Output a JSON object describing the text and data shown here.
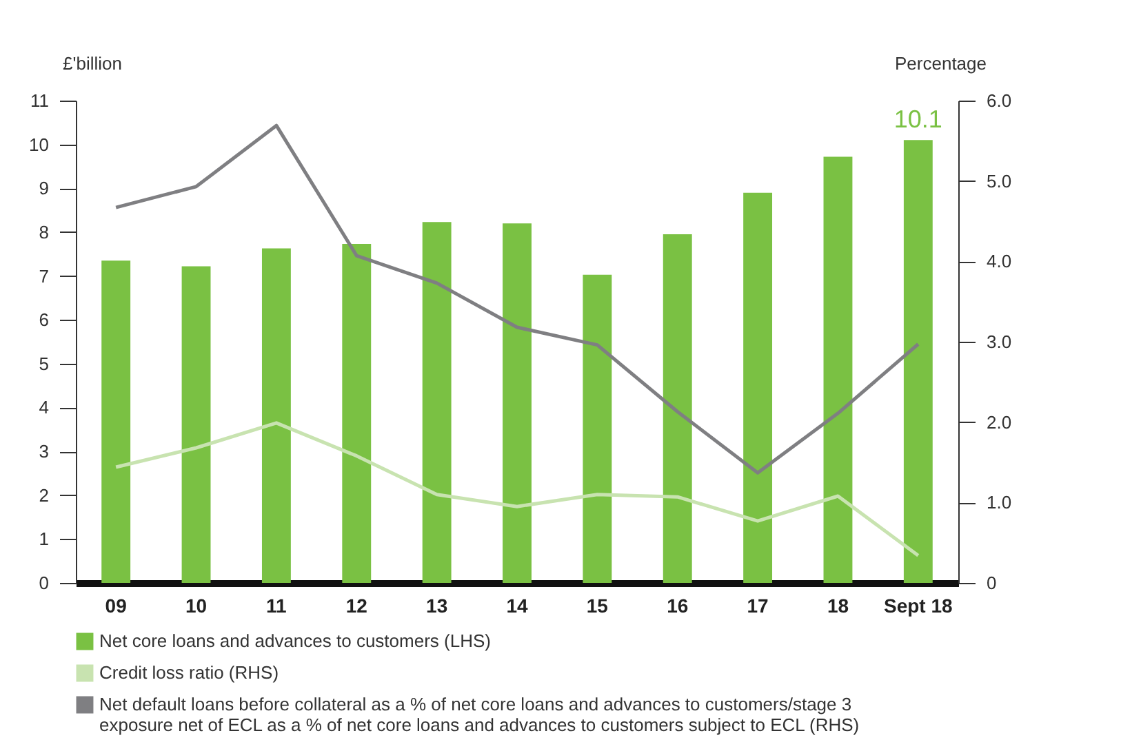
{
  "chart_data": {
    "type": "bar",
    "ylabel": "£'billion",
    "y2label": "Percentage",
    "categories": [
      "09",
      "10",
      "11",
      "12",
      "13",
      "14",
      "15",
      "16",
      "17",
      "18",
      "Sept 18"
    ],
    "series": [
      {
        "name": "Net core loans and advances to customers (LHS)",
        "color": "#7ac143",
        "values": [
          7.35,
          7.22,
          7.63,
          7.73,
          8.23,
          8.2,
          7.03,
          7.95,
          8.9,
          9.72,
          10.1
        ],
        "value_labels": [
          null,
          null,
          null,
          null,
          null,
          null,
          null,
          null,
          null,
          null,
          "10.1"
        ]
      },
      {
        "name": "Credit loss ratio (RHS)",
        "type": "line",
        "axis": "y2",
        "color": "#c8e3b0",
        "values": [
          1.44,
          1.68,
          1.99,
          1.58,
          1.1,
          0.95,
          1.1,
          1.07,
          0.77,
          1.08,
          0.34
        ]
      },
      {
        "name": "Net default loans before collateral as a % of net core loans and advances to customers/stage 3 exposure net of ECL as a % of net core loans and advances to customers subject to ECL (RHS)",
        "type": "line",
        "axis": "y2",
        "color": "#7f7f82",
        "values": [
          4.67,
          4.93,
          5.69,
          4.07,
          3.73,
          3.18,
          2.96,
          2.13,
          1.37,
          2.11,
          2.97
        ]
      }
    ],
    "ylim": [
      0,
      11
    ],
    "yticks": [
      0,
      1,
      2,
      3,
      4,
      5,
      6,
      7,
      8,
      9,
      10,
      11
    ],
    "y2lim": [
      0,
      6
    ],
    "y2ticks": [
      0,
      {
        "value": 1,
        "label": "1.0"
      },
      {
        "value": 2,
        "label": "2.0"
      },
      {
        "value": 3,
        "label": "3.0"
      },
      {
        "value": 4,
        "label": "4.0"
      },
      {
        "value": 5,
        "label": "5.0"
      },
      {
        "value": 6,
        "label": "6.0"
      }
    ],
    "grid": false,
    "legend": "bottom",
    "marker": "none",
    "line_style": "solid"
  }
}
